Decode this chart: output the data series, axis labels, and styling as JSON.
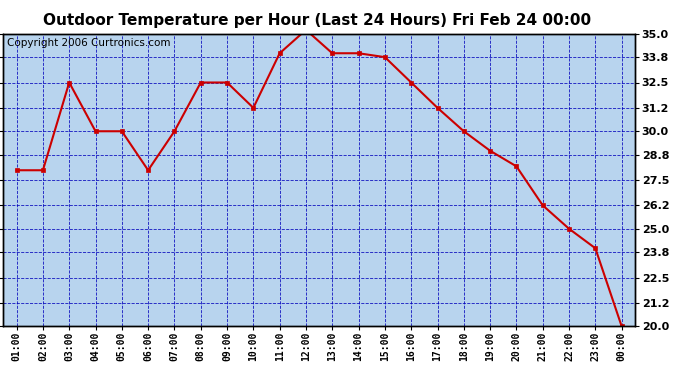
{
  "title": "Outdoor Temperature per Hour (Last 24 Hours) Fri Feb 24 00:00",
  "copyright": "Copyright 2006 Curtronics.com",
  "x_labels": [
    "01:00",
    "02:00",
    "03:00",
    "04:00",
    "05:00",
    "06:00",
    "07:00",
    "08:00",
    "09:00",
    "10:00",
    "11:00",
    "12:00",
    "13:00",
    "14:00",
    "15:00",
    "16:00",
    "17:00",
    "18:00",
    "19:00",
    "20:00",
    "21:00",
    "22:00",
    "23:00",
    "00:00"
  ],
  "temps": [
    28.0,
    28.0,
    32.5,
    30.0,
    30.0,
    28.0,
    30.0,
    32.5,
    32.5,
    31.2,
    34.0,
    35.2,
    34.0,
    34.0,
    33.8,
    32.5,
    31.2,
    30.0,
    29.0,
    28.2,
    26.2,
    25.0,
    24.0,
    20.0
  ],
  "ylim": [
    20.0,
    35.0
  ],
  "yticks": [
    20.0,
    21.2,
    22.5,
    23.8,
    25.0,
    26.2,
    27.5,
    28.8,
    30.0,
    31.2,
    32.5,
    33.8,
    35.0
  ],
  "line_color": "#cc0000",
  "bg_color": "#b8d4ee",
  "grid_color": "#0000bb",
  "title_fontsize": 11,
  "copyright_fontsize": 7.5
}
